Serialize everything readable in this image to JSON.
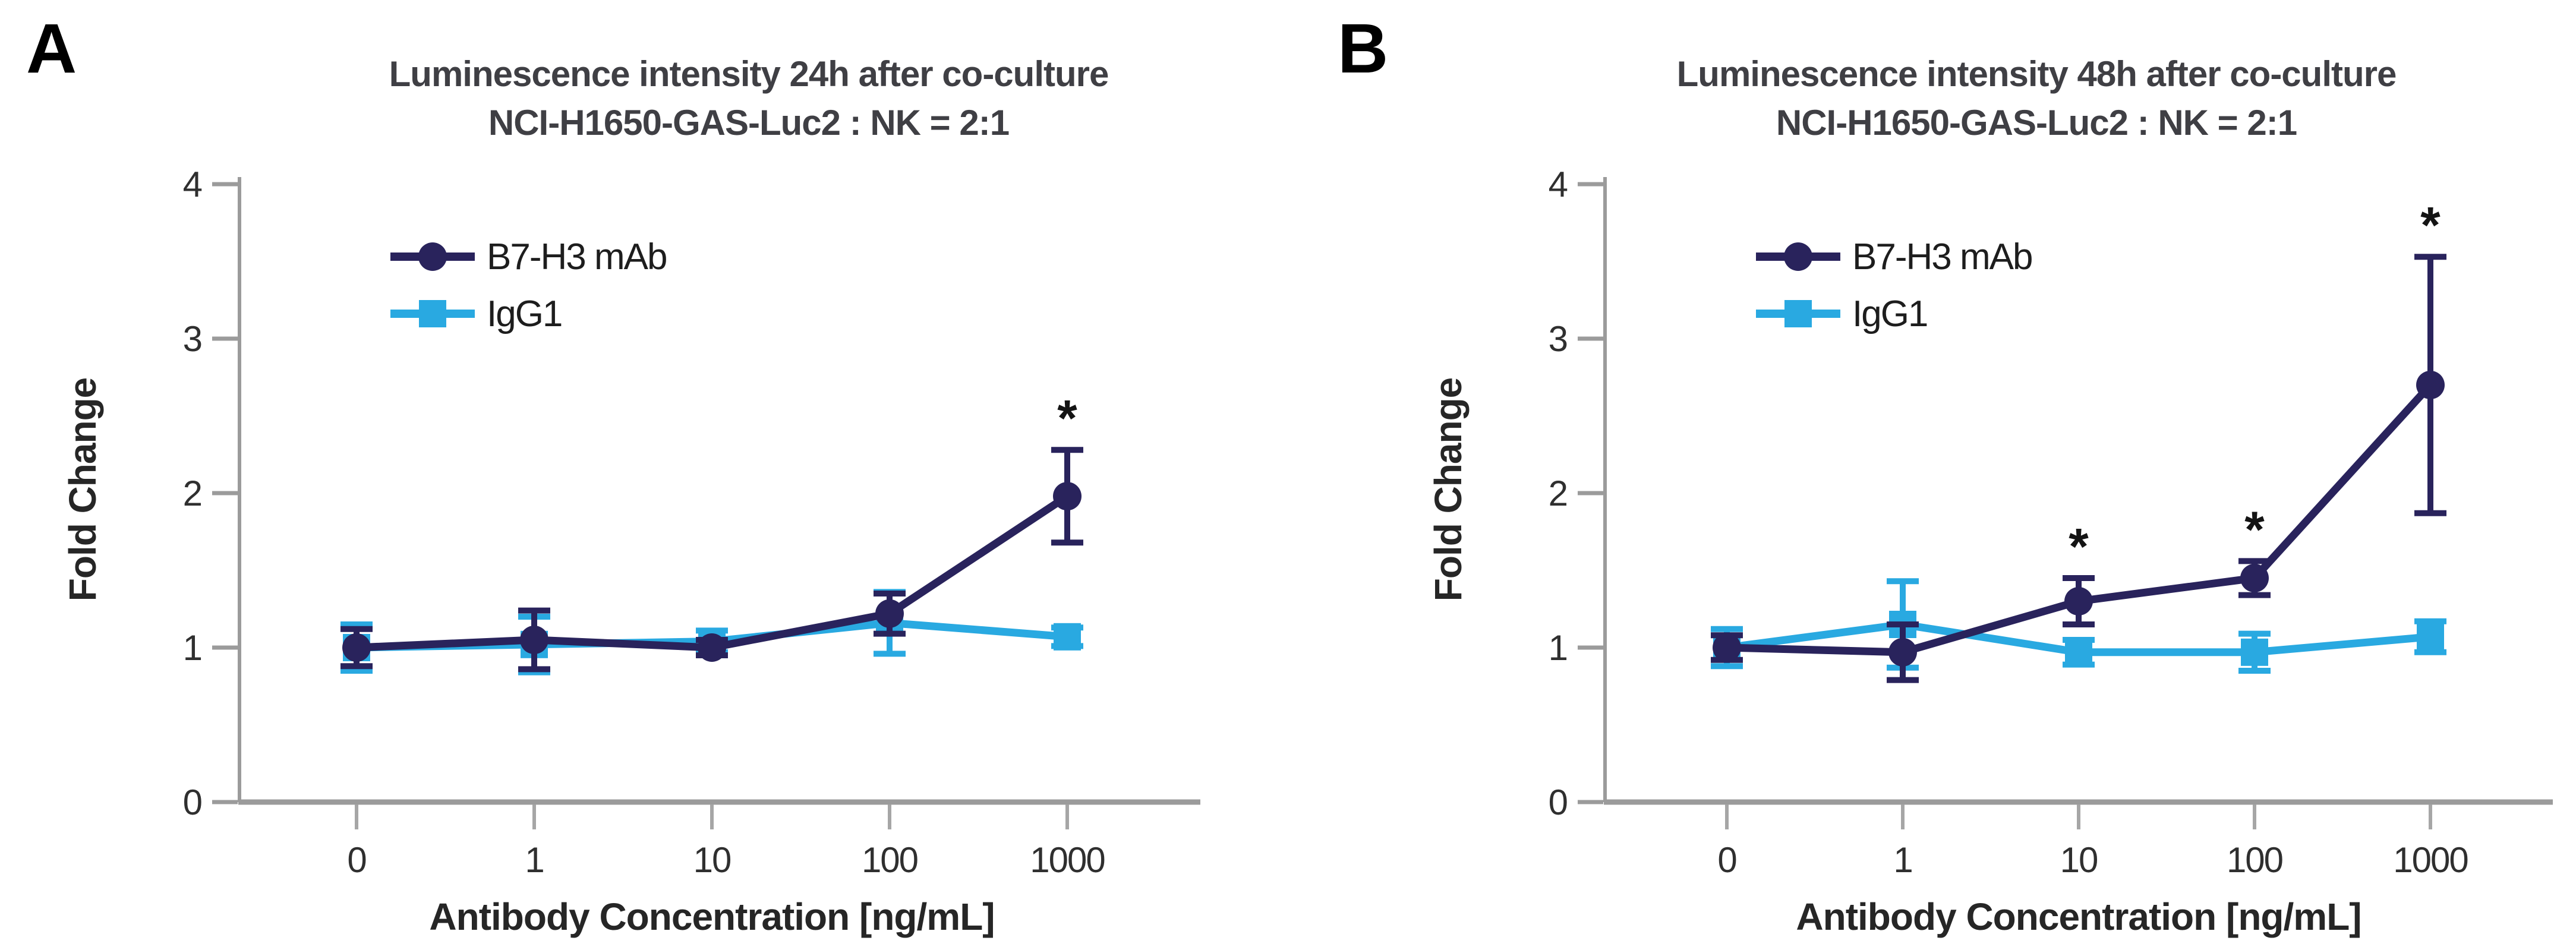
{
  "colors": {
    "axis_line": "#9b9b9b",
    "tick_line": "#a6a6a6",
    "tick_label_text": "#2f2f2f",
    "axis_title_text": "#262626",
    "chart_title_text": "#3f3f44",
    "panel_letter_text": "#000000",
    "significance_star": "#141414",
    "background": "#ffffff",
    "b7h3_navy": "#29235c",
    "igg1_blue": "#29a9e1"
  },
  "significance_symbol": "*",
  "chart_data": [
    {
      "type": "line",
      "panel_label": "A",
      "title": "Luminescence intensity 24h after co-culture",
      "subtitle": "NCI-H1650-GAS-Luc2 : NK = 2:1",
      "xlabel": "Antibody Concentration [ng/mL]",
      "ylabel": "Fold Change",
      "categories": [
        "0",
        "1",
        "10",
        "100",
        "1000"
      ],
      "yticks": [
        0,
        1,
        2,
        3,
        4
      ],
      "ylim": [
        0,
        4
      ],
      "grid": false,
      "legend_position": "upper-left-inside",
      "error_bars": true,
      "series": [
        {
          "name": "B7-H3 mAb",
          "marker": "circle",
          "color": "#29235c",
          "values": [
            1.0,
            1.05,
            1.0,
            1.22,
            1.98
          ],
          "errors": [
            0.12,
            0.19,
            0.05,
            0.13,
            0.3
          ],
          "significant": [
            false,
            false,
            false,
            false,
            true
          ]
        },
        {
          "name": "IgG1",
          "marker": "square",
          "color": "#29a9e1",
          "values": [
            1.0,
            1.02,
            1.04,
            1.16,
            1.07
          ],
          "errors": [
            0.15,
            0.18,
            0.07,
            0.2,
            0.06
          ],
          "significant": [
            false,
            false,
            false,
            false,
            false
          ]
        }
      ]
    },
    {
      "type": "line",
      "panel_label": "B",
      "title": "Luminescence intensity 48h after co-culture",
      "subtitle": "NCI-H1650-GAS-Luc2 : NK = 2:1",
      "xlabel": "Antibody Concentration [ng/mL]",
      "ylabel": "Fold Change",
      "categories": [
        "0",
        "1",
        "10",
        "100",
        "1000"
      ],
      "yticks": [
        0,
        1,
        2,
        3,
        4
      ],
      "ylim": [
        0,
        4
      ],
      "grid": false,
      "legend_position": "upper-left-inside",
      "error_bars": true,
      "series": [
        {
          "name": "B7-H3 mAb",
          "marker": "circle",
          "color": "#29235c",
          "values": [
            1.0,
            0.97,
            1.3,
            1.45,
            2.7
          ],
          "errors": [
            0.08,
            0.18,
            0.15,
            0.11,
            0.83
          ],
          "significant": [
            false,
            false,
            true,
            true,
            true
          ]
        },
        {
          "name": "IgG1",
          "marker": "square",
          "color": "#29a9e1",
          "values": [
            1.0,
            1.15,
            0.97,
            0.97,
            1.07
          ],
          "errors": [
            0.12,
            0.28,
            0.08,
            0.12,
            0.1
          ],
          "significant": [
            false,
            false,
            false,
            false,
            false
          ]
        }
      ]
    }
  ]
}
